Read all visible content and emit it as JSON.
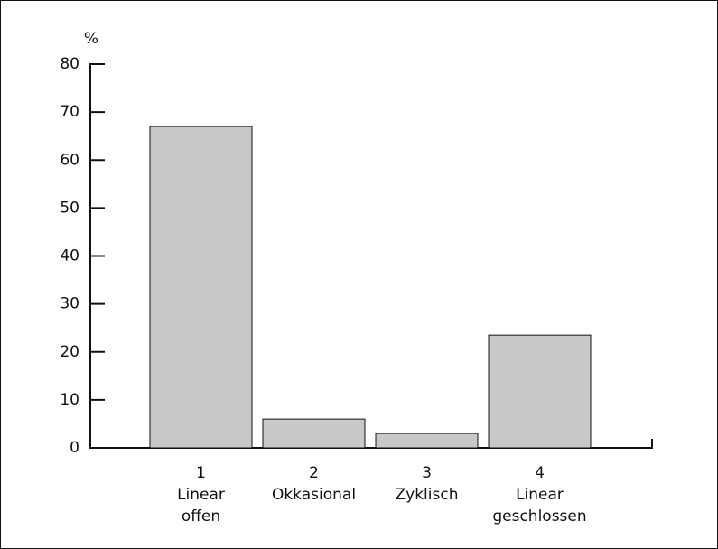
{
  "chart_data": {
    "type": "bar",
    "y_label": "%",
    "categories": [
      [
        "1",
        "Linear",
        "offen"
      ],
      [
        "2",
        "Okkasional"
      ],
      [
        "3",
        "Zyklisch"
      ],
      [
        "4",
        "Linear",
        "geschlossen"
      ]
    ],
    "values": [
      67,
      6,
      3,
      23.5
    ],
    "color": "#c8c8c8",
    "ylim": [
      0,
      80
    ],
    "yticks": [
      0,
      10,
      20,
      30,
      40,
      50,
      60,
      70,
      80
    ]
  }
}
